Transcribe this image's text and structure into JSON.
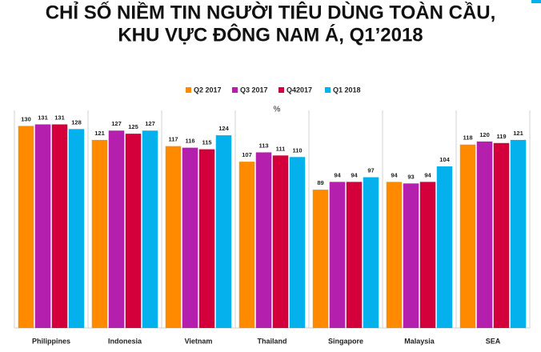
{
  "chart_data": {
    "type": "bar",
    "title": [
      "CHỈ SỐ NIỀM TIN NGƯỜI TIÊU DÙNG TOÀN CẦU,",
      "KHU VỰC ĐÔNG NAM Á, Q1’2018"
    ],
    "unit": "%",
    "categories": [
      "Philippines",
      "Indonesia",
      "Vietnam",
      "Thailand",
      "Singapore",
      "Malaysia",
      "SEA"
    ],
    "series": [
      {
        "name": "Q2 2017",
        "color": "#ff8a00",
        "values": [
          130,
          121,
          117,
          107,
          89,
          94,
          118
        ]
      },
      {
        "name": "Q3 2017",
        "color": "#b41fae",
        "values": [
          131,
          127,
          116,
          113,
          94,
          93,
          120
        ]
      },
      {
        "name": "Q42017",
        "color": "#d4003c",
        "values": [
          131,
          125,
          115,
          111,
          94,
          94,
          119
        ]
      },
      {
        "name": "Q1 2018",
        "color": "#05b1ed",
        "values": [
          128,
          127,
          124,
          110,
          97,
          104,
          121
        ]
      }
    ],
    "ylim": [
      0,
      140
    ]
  }
}
